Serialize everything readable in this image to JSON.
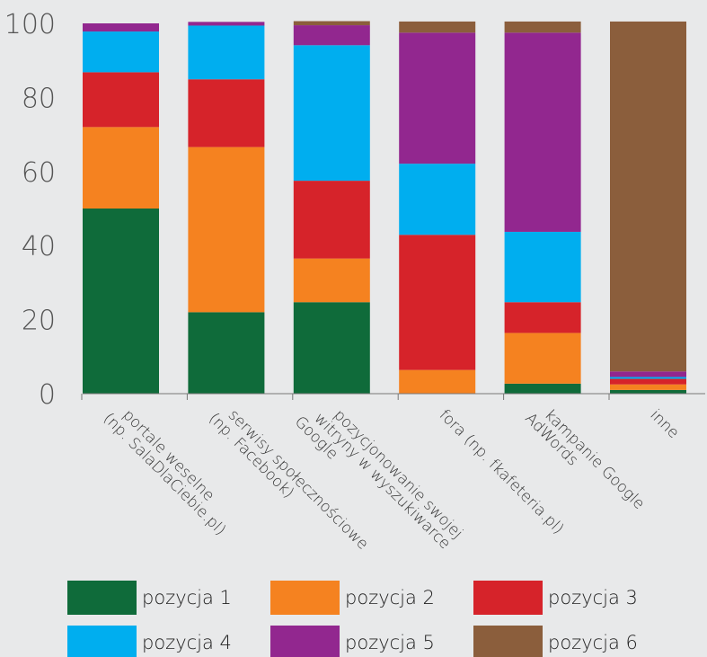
{
  "chart_data": {
    "type": "bar",
    "stacked": true,
    "categories": [
      [
        "portale weselne",
        "(np. SalaDlaCiebie.pl)"
      ],
      [
        "serwisy społecznościowe",
        "(np. Facebook)"
      ],
      [
        "pozycjonowanie swojej",
        "witryny w wyszukiwarce",
        "Google"
      ],
      [
        "fora (np. fkafeteria.pl)"
      ],
      [
        "kampanie Google",
        "AdWords"
      ],
      [
        "inne"
      ]
    ],
    "series": [
      {
        "name": "pozycja 1",
        "color": "#0f6b3a",
        "values": [
          50,
          22,
          24.7,
          0,
          2.7,
          1
        ]
      },
      {
        "name": "pozycja 2",
        "color": "#f58220",
        "values": [
          22,
          44.6,
          11.8,
          6.4,
          13.7,
          1.5
        ]
      },
      {
        "name": "pozycja 3",
        "color": "#d6232a",
        "values": [
          14.8,
          18.3,
          21,
          36.5,
          8.3,
          1.5
        ]
      },
      {
        "name": "pozycja 4",
        "color": "#00aeef",
        "values": [
          11,
          14.5,
          36.6,
          19.2,
          19,
          0.5
        ]
      },
      {
        "name": "pozycja 5",
        "color": "#92278f",
        "values": [
          2.2,
          1,
          5.4,
          35.4,
          53.8,
          1.5
        ]
      },
      {
        "name": "pozycja 6",
        "color": "#8b5e3c",
        "values": [
          0,
          0,
          1.1,
          3,
          3,
          94.5
        ]
      }
    ],
    "ylim": [
      0,
      100
    ],
    "yticks": [
      0,
      20,
      40,
      60,
      80,
      100
    ],
    "xlabel": "",
    "ylabel": "",
    "title": "",
    "legend_position": "bottom",
    "grid": false
  }
}
